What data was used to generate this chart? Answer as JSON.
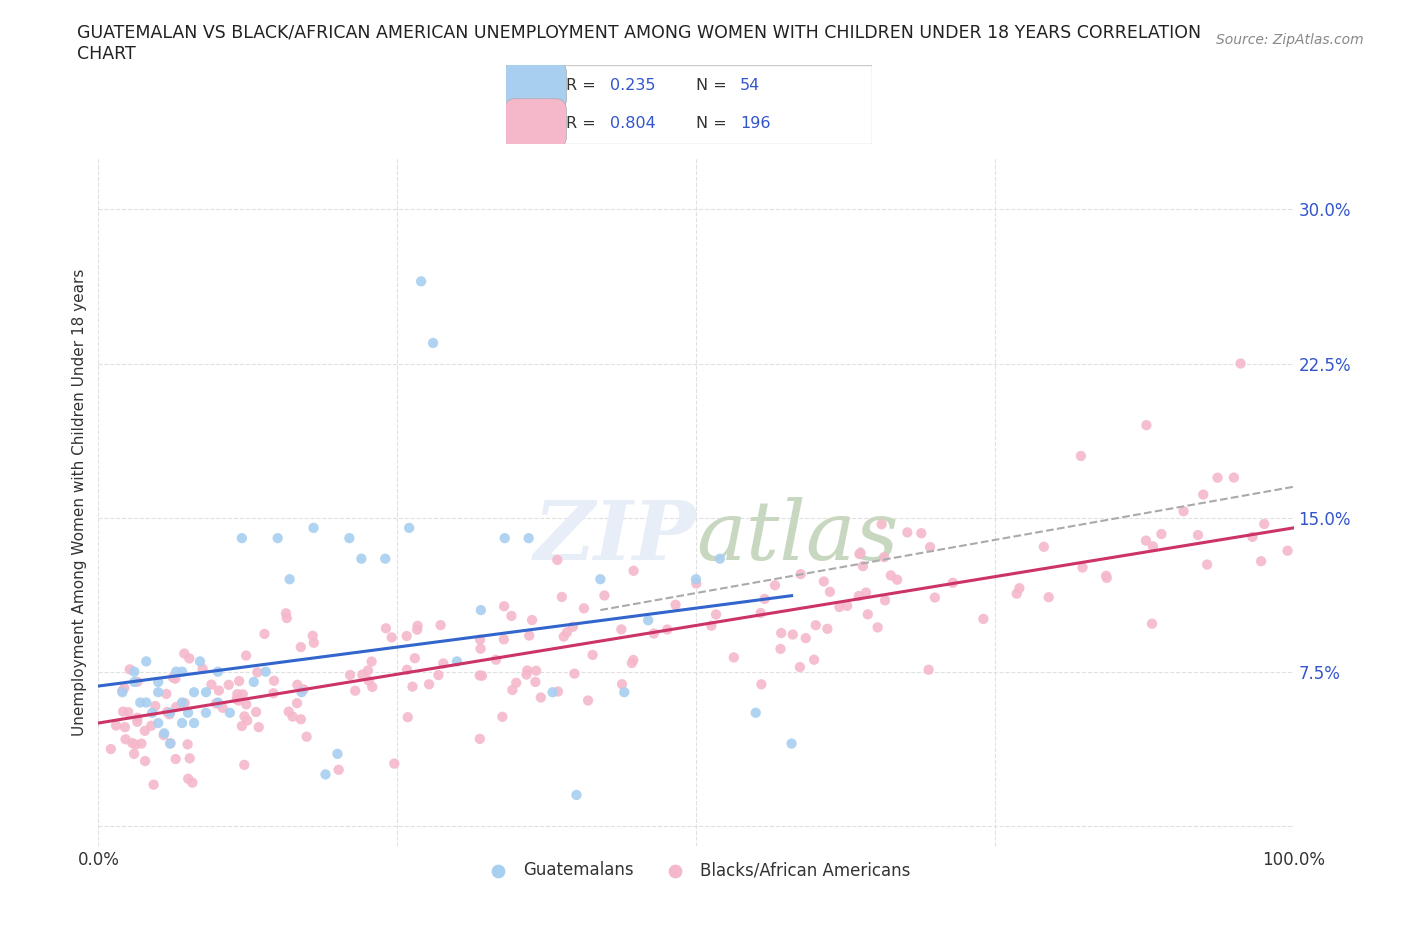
{
  "title_line1": "GUATEMALAN VS BLACK/AFRICAN AMERICAN UNEMPLOYMENT AMONG WOMEN WITH CHILDREN UNDER 18 YEARS CORRELATION",
  "title_line2": "CHART",
  "source_text": "Source: ZipAtlas.com",
  "ylabel": "Unemployment Among Women with Children Under 18 years",
  "xlim": [
    0.0,
    1.0
  ],
  "ylim": [
    -0.01,
    0.325
  ],
  "xticks": [
    0.0,
    0.25,
    0.5,
    0.75,
    1.0
  ],
  "xtick_labels": [
    "0.0%",
    "",
    "",
    "",
    "100.0%"
  ],
  "yticks": [
    0.0,
    0.075,
    0.15,
    0.225,
    0.3
  ],
  "ytick_labels": [
    "",
    "7.5%",
    "15.0%",
    "22.5%",
    "30.0%"
  ],
  "background_color": "#ffffff",
  "grid_color": "#e0e0e0",
  "scatter_blue_color": "#a8cff0",
  "scatter_pink_color": "#f5b8cb",
  "line_blue_color": "#3366cc",
  "line_pink_color": "#cc3366",
  "line_gray_color": "#aaaaaa",
  "legend_R1": "0.235",
  "legend_N1": "54",
  "legend_R2": "0.804",
  "legend_N2": "196",
  "blue_label": "Guatemalans",
  "pink_label": "Blacks/African Americans",
  "R_color": "#3355cc",
  "N_color": "#3355cc",
  "watermark_color": "#e8eef8"
}
